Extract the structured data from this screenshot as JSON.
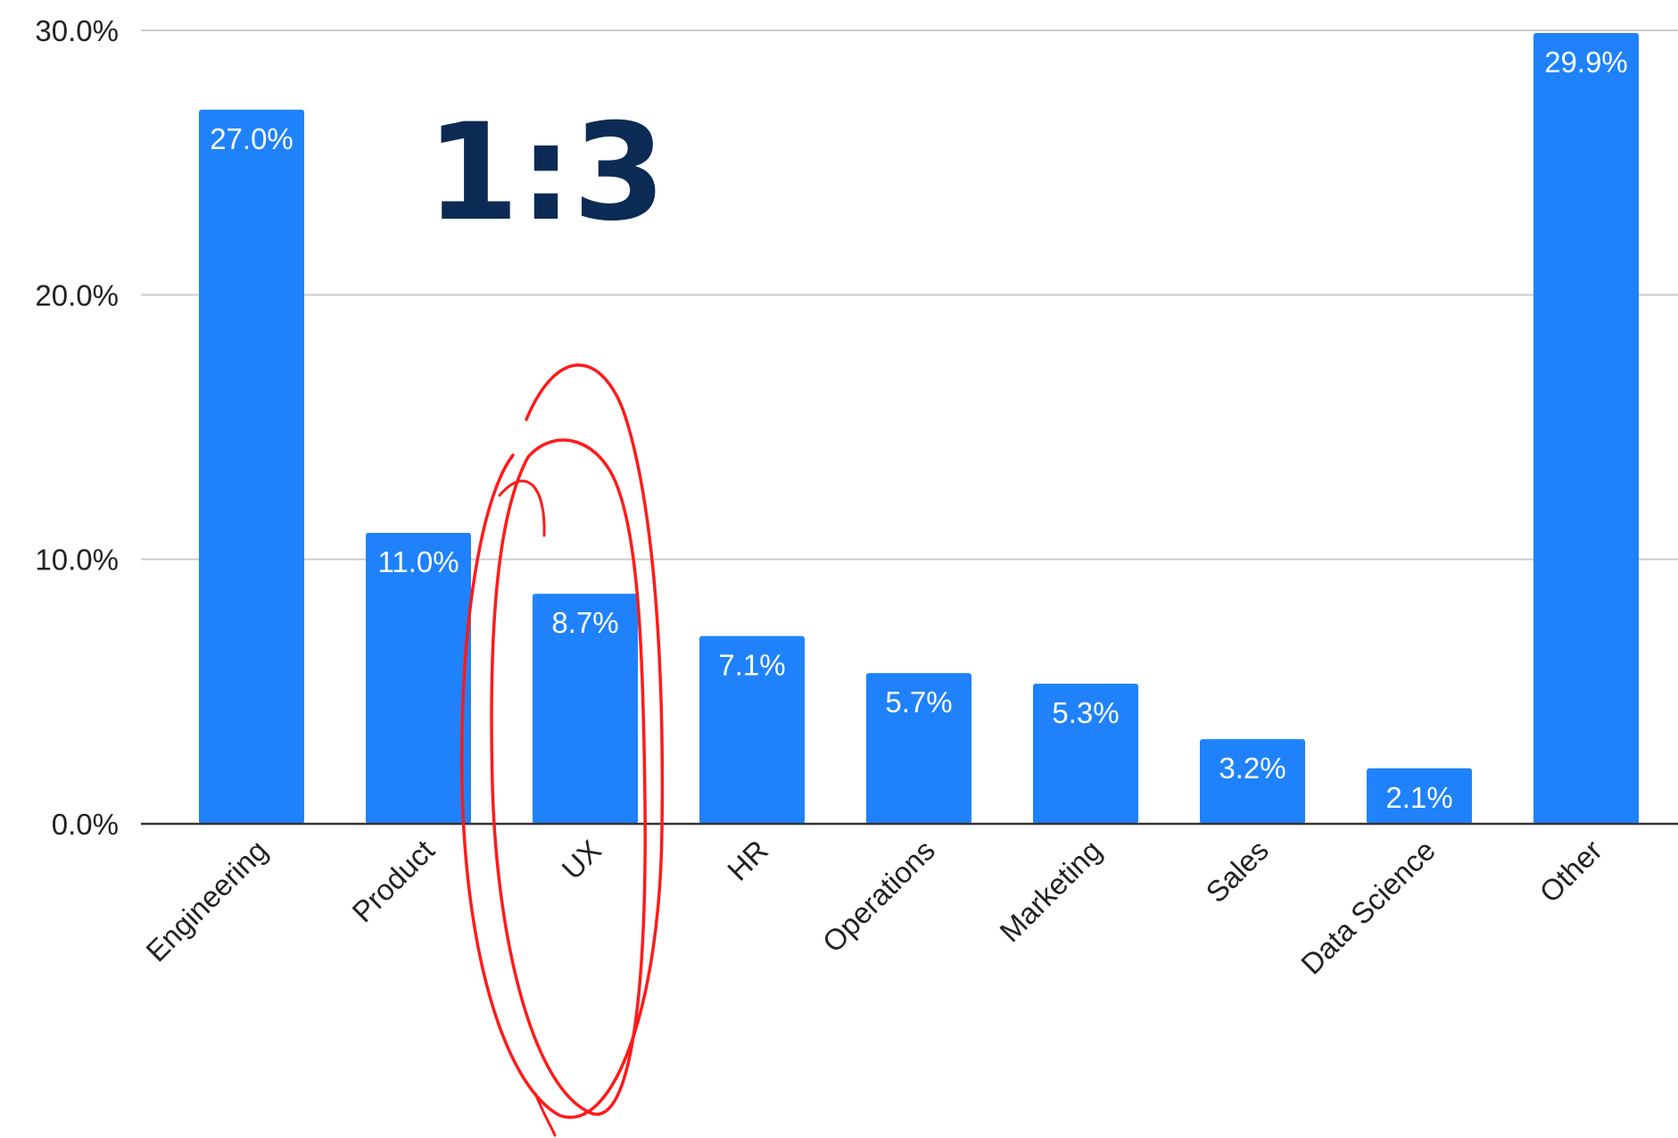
{
  "chart_data": {
    "type": "bar",
    "categories": [
      "Engineering",
      "Product",
      "UX",
      "HR",
      "Operations",
      "Marketing",
      "Sales",
      "Data Science",
      "Other"
    ],
    "values": [
      27.0,
      11.0,
      8.7,
      7.1,
      5.7,
      5.3,
      3.2,
      2.1,
      29.9
    ],
    "data_labels": [
      "27.0%",
      "11.0%",
      "8.7%",
      "7.1%",
      "5.7%",
      "5.3%",
      "3.2%",
      "2.1%",
      "29.9%"
    ],
    "yticks": [
      0,
      10,
      20,
      30
    ],
    "ytick_labels": [
      "0.0%",
      "10.0%",
      "20.0%",
      "30.0%"
    ],
    "ylim": [
      0,
      30
    ],
    "grid": true,
    "bar_color": "#1f82fb",
    "title": "",
    "xlabel": "",
    "ylabel": ""
  },
  "annotation": {
    "text": "1:3",
    "text_color": "#0b2b55",
    "circled_category": "UX",
    "circle_color": "#ff1a1a"
  }
}
